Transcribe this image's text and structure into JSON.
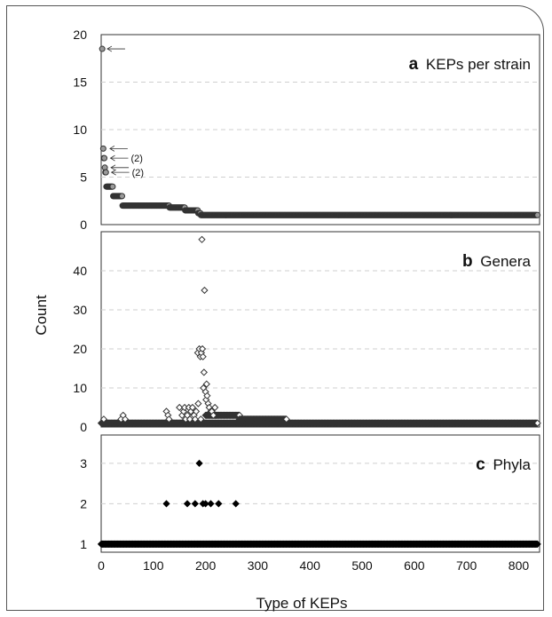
{
  "chart_data": {
    "type": "scatter",
    "xlabel": "Type of KEPs",
    "ylabel": "Count",
    "xlim": [
      0,
      840
    ],
    "xticks": [
      "0",
      "100",
      "200",
      "300",
      "400",
      "500",
      "600",
      "700",
      "800"
    ],
    "grid": "horizontal dashed",
    "panels": [
      {
        "id": "a",
        "letter": "a",
        "title": "KEPs per strain",
        "ylim": [
          0,
          20
        ],
        "yticks": [
          "0",
          "5",
          "10",
          "15",
          "20"
        ],
        "marker": "circle",
        "marker_fill": "#9a9a9a",
        "marker_edge": "#333333",
        "annotations": [
          {
            "y": 18.5,
            "label": ""
          },
          {
            "y": 8,
            "label": ""
          },
          {
            "y": 7,
            "label": "(2)"
          },
          {
            "y": 6,
            "label": ""
          },
          {
            "y": 5.5,
            "label": "(2)"
          }
        ],
        "series": [
          {
            "x": [
              2,
              4,
              5,
              6,
              7,
              8,
              9
            ],
            "values": [
              18.5,
              8,
              7,
              7,
              6,
              5.5,
              5.5
            ]
          },
          {
            "x_range": [
              10,
              22
            ],
            "value": 4
          },
          {
            "x_range": [
              23,
              40
            ],
            "value": 3
          },
          {
            "x_range": [
              41,
              130
            ],
            "value": 2
          },
          {
            "x_range": [
              131,
              160
            ],
            "value": 1.8
          },
          {
            "x_range": [
              161,
              185
            ],
            "value": 1.5
          },
          {
            "x_range": [
              186,
              190
            ],
            "value": 1.2
          },
          {
            "x_range": [
              191,
              836
            ],
            "value": 1
          }
        ]
      },
      {
        "id": "b",
        "letter": "b",
        "title": "Genera",
        "ylim": [
          0,
          50
        ],
        "yticks": [
          "0",
          "10",
          "20",
          "30",
          "40"
        ],
        "marker": "diamond",
        "marker_fill": "#ffffff",
        "marker_edge": "#333333",
        "series": [
          {
            "x_range": [
              0,
              836
            ],
            "value": 1
          },
          {
            "x_range": [
              200,
              220
            ],
            "value": 3
          },
          {
            "x_range": [
              220,
              265
            ],
            "value": 3
          },
          {
            "x_range": [
              265,
              355
            ],
            "value": 2
          },
          {
            "x": [
              5,
              38,
              42,
              46,
              125,
              128,
              130,
              150,
              155,
              158,
              160,
              162,
              165,
              168,
              170,
              172,
              175,
              178,
              180,
              182,
              185,
              186,
              188,
              190,
              191,
              192,
              193,
              194,
              195,
              196,
              197,
              198,
              200,
              201,
              202,
              203,
              205,
              207,
              210,
              212,
              215,
              218
            ],
            "values": [
              2,
              2,
              3,
              2,
              4,
              3,
              2,
              5,
              3,
              4,
              5,
              2,
              3,
              5,
              2,
              4,
              5,
              3,
              2,
              4,
              19,
              6,
              20,
              18,
              2,
              19,
              48,
              20,
              18,
              10,
              14,
              35,
              9,
              7,
              11,
              8,
              6,
              5,
              4,
              4,
              3,
              5
            ]
          }
        ]
      },
      {
        "id": "c",
        "letter": "c",
        "title": "Phyla",
        "ylim": [
          0.8,
          3.7
        ],
        "yticks": [
          "1",
          "2",
          "3"
        ],
        "marker": "diamond",
        "marker_fill": "#000000",
        "marker_edge": "#000000",
        "series": [
          {
            "x_range": [
              0,
              836
            ],
            "value": 1
          },
          {
            "x": [
              125,
              165,
              180,
              188,
              195,
              200,
              210,
              225,
              258
            ],
            "values": [
              2,
              2,
              2,
              3,
              2,
              2,
              2,
              2,
              2
            ]
          }
        ]
      }
    ]
  }
}
